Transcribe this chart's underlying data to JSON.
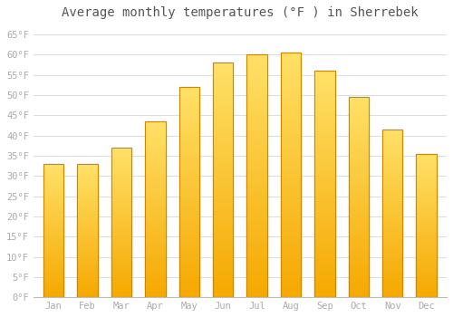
{
  "title": "Average monthly temperatures (°F ) in Sherrebek",
  "months": [
    "Jan",
    "Feb",
    "Mar",
    "Apr",
    "May",
    "Jun",
    "Jul",
    "Aug",
    "Sep",
    "Oct",
    "Nov",
    "Dec"
  ],
  "values": [
    33,
    33,
    37,
    43.5,
    52,
    58,
    60,
    60.5,
    56,
    49.5,
    41.5,
    35.5
  ],
  "bar_color_bottom": "#F5A800",
  "bar_color_top": "#FFE066",
  "bar_edge_color": "#CC8800",
  "background_color": "#FFFFFF",
  "grid_color": "#DDDDDD",
  "yticks": [
    0,
    5,
    10,
    15,
    20,
    25,
    30,
    35,
    40,
    45,
    50,
    55,
    60,
    65
  ],
  "ylim": [
    0,
    67
  ],
  "tick_label_color": "#AAAAAA",
  "title_color": "#555555",
  "title_fontsize": 10,
  "font_family": "monospace",
  "bar_width": 0.6,
  "n_gradient_steps": 100
}
